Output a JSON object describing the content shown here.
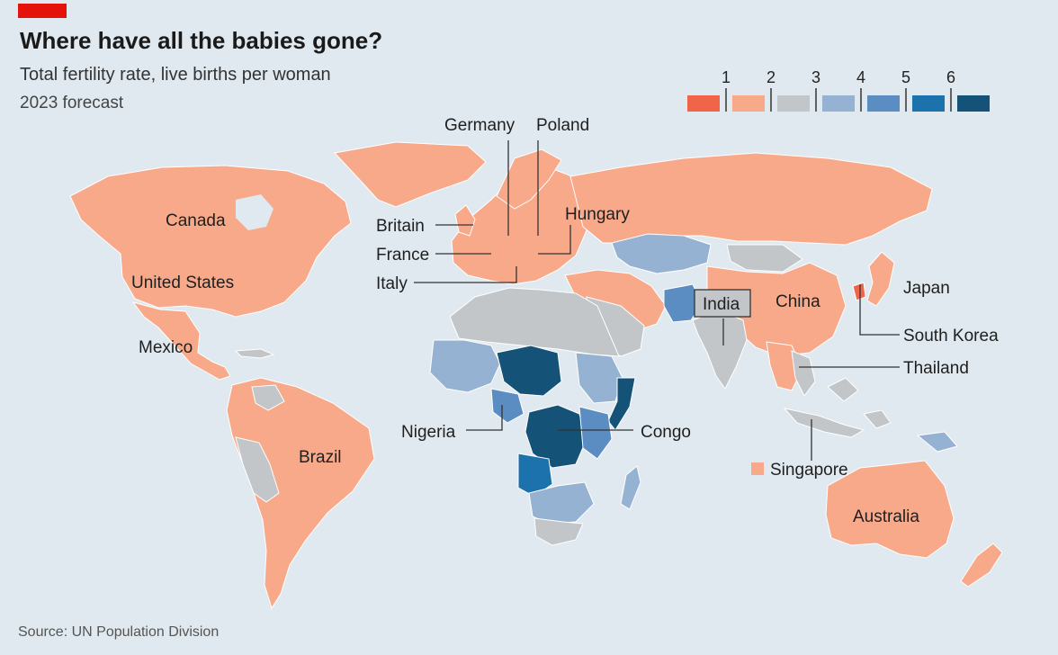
{
  "header": {
    "title": "Where have all the babies gone?",
    "subtitle": "Total fertility rate, live births per woman",
    "forecast": "2023 forecast"
  },
  "footer": {
    "source": "Source: UN Population Division"
  },
  "legend": {
    "ticks": [
      "1",
      "2",
      "3",
      "4",
      "5",
      "6"
    ],
    "colors": [
      "#f0654a",
      "#f7a98a",
      "#c2c6c9",
      "#96b2d3",
      "#5b8dc2",
      "#1c72ad",
      "#155278"
    ]
  },
  "colors": {
    "background": "#dfe9ef",
    "brand_red": "#e3120b",
    "fertility_1_2": "#f7a98a",
    "fertility_2_3": "#c2c6c9",
    "fertility_3_4": "#96b2d3",
    "fertility_4_5": "#5b8dc2",
    "fertility_5_6": "#1c72ad",
    "fertility_6_plus": "#155278"
  },
  "labels": {
    "canada": "Canada",
    "united_states": "United States",
    "mexico": "Mexico",
    "brazil": "Brazil",
    "germany": "Germany",
    "poland": "Poland",
    "britain": "Britain",
    "france": "France",
    "italy": "Italy",
    "hungary": "Hungary",
    "india": "India",
    "china": "China",
    "japan": "Japan",
    "south_korea": "South Korea",
    "thailand": "Thailand",
    "nigeria": "Nigeria",
    "congo": "Congo",
    "singapore": "Singapore",
    "australia": "Australia"
  }
}
